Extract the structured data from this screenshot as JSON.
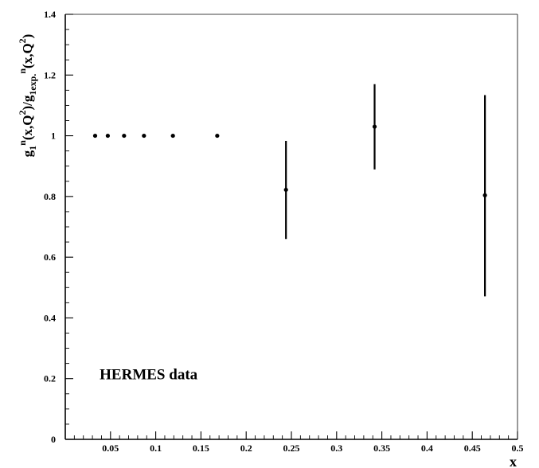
{
  "chart_data": {
    "type": "scatter",
    "xlabel": "x",
    "ylabel": "g1n(x,Q2)/g1exp.n(x,Q2)",
    "ylabel_parts": {
      "g": "g",
      "sub1": "1",
      "sup_n": "n",
      "open_paren": "(x,Q",
      "sup2": "2",
      "close_slash": ")/g",
      "sub1exp": "1exp.",
      "sup_n2": "n",
      "open_paren2": "(x,Q",
      "sup2b": "2",
      "close_paren": ")"
    },
    "annotation": "HERMES data",
    "xlim": [
      0,
      0.5
    ],
    "ylim": [
      0,
      1.4
    ],
    "xticks": [
      0.05,
      0.1,
      0.15,
      0.2,
      0.25,
      0.3,
      0.35,
      0.4,
      0.45,
      0.5
    ],
    "xtick_labels": [
      "0.05",
      "0.1",
      "0.15",
      "0.2",
      "0.25",
      "0.3",
      "0.35",
      "0.4",
      "0.45",
      "0.5"
    ],
    "yticks": [
      0,
      0.2,
      0.4,
      0.6,
      0.8,
      1,
      1.2,
      1.4
    ],
    "ytick_labels": [
      "0",
      "0.2",
      "0.4",
      "0.6",
      "0.8",
      "1",
      "1.2",
      "1.4"
    ],
    "grid": false,
    "series": [
      {
        "points": [
          {
            "x": 0.033,
            "y": 1.0,
            "ylow": 1.0,
            "yhigh": 1.0
          },
          {
            "x": 0.047,
            "y": 1.0,
            "ylow": 1.0,
            "yhigh": 1.0
          },
          {
            "x": 0.065,
            "y": 1.0,
            "ylow": 1.0,
            "yhigh": 1.0
          },
          {
            "x": 0.087,
            "y": 1.0,
            "ylow": 1.0,
            "yhigh": 1.0
          },
          {
            "x": 0.119,
            "y": 1.0,
            "ylow": 1.0,
            "yhigh": 1.0
          },
          {
            "x": 0.168,
            "y": 1.0,
            "ylow": 1.0,
            "yhigh": 1.0
          },
          {
            "x": 0.244,
            "y": 0.822,
            "ylow": 0.66,
            "yhigh": 0.983
          },
          {
            "x": 0.342,
            "y": 1.03,
            "ylow": 0.889,
            "yhigh": 1.17
          },
          {
            "x": 0.464,
            "y": 0.804,
            "ylow": 0.471,
            "yhigh": 1.134
          }
        ]
      }
    ]
  }
}
